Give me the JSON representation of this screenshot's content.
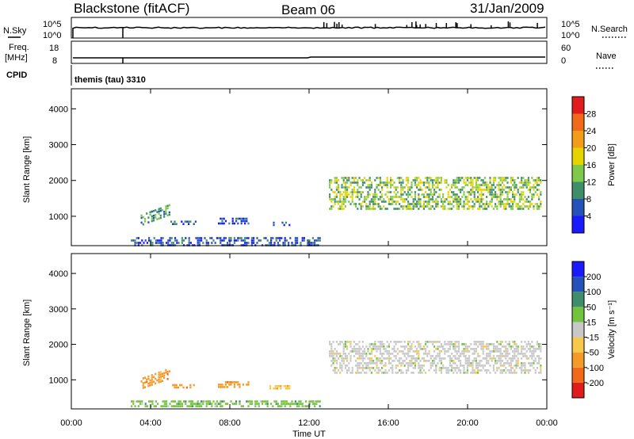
{
  "header": {
    "station": "Blackstone (fitACF)",
    "beam": "Beam 06",
    "date": "31/Jan/2009"
  },
  "strip": {
    "nsky_label": "N.Sky",
    "nsearch_label": "N.Search",
    "freq_label_1": "Freq.",
    "freq_label_2": "[MHz]",
    "nave_label": "Nave",
    "cpid_label": "CPID",
    "cpid_text": "themis (tau) 3310",
    "nsky_ticks": [
      "10^5",
      "10^0"
    ],
    "nsearch_ticks": [
      "10^5",
      "10^0"
    ],
    "freq_ticks": [
      "18",
      "8"
    ],
    "nave_ticks": [
      "60",
      "0"
    ]
  },
  "axes": {
    "ylabel": "Slant Range [km]",
    "xlabel": "Time UT"
  },
  "colors": {
    "power": [
      "#1a1aff",
      "#2552b8",
      "#3f8e6a",
      "#7ec84a",
      "#e6d400",
      "#f39c1a",
      "#f06a1a",
      "#e01c1c"
    ],
    "velocity": [
      "#e01c1c",
      "#f06a1a",
      "#f49a28",
      "#f7c84a",
      "#c8c8c8",
      "#72c43e",
      "#3f8e6a",
      "#2552b8",
      "#1a1aff"
    ]
  },
  "chart_data": [
    {
      "type": "heatmap",
      "title": "Power",
      "xlabel": "Time UT",
      "ylabel": "Slant Range [km]",
      "x_ticks": [
        "00:00",
        "04:00",
        "08:00",
        "12:00",
        "16:00",
        "20:00",
        "00:00"
      ],
      "y_ticks": [
        1000,
        2000,
        3000,
        4000
      ],
      "xlim_hours": [
        0,
        24
      ],
      "ylim_km": [
        180,
        4560
      ],
      "colorbar": {
        "label": "Power [dB]",
        "range": [
          0,
          32
        ],
        "ticks": [
          4,
          8,
          12,
          16,
          20,
          24,
          28
        ]
      },
      "echo_regions": [
        {
          "t_start": 3.5,
          "t_end": 5.0,
          "range_start_km": 750,
          "range_end_km": 1300,
          "power_db": 10
        },
        {
          "t_start": 5.0,
          "t_end": 6.3,
          "range_start_km": 780,
          "range_end_km": 880,
          "power_db": 8
        },
        {
          "t_start": 7.4,
          "t_end": 9.0,
          "range_start_km": 780,
          "range_end_km": 960,
          "power_db": 8
        },
        {
          "t_start": 10.0,
          "t_end": 11.1,
          "range_start_km": 760,
          "range_end_km": 850,
          "power_db": 6
        },
        {
          "t_start": 3.0,
          "t_end": 12.6,
          "range_start_km": 220,
          "range_end_km": 420,
          "power_db": 6
        },
        {
          "t_start": 13.0,
          "t_end": 23.7,
          "range_start_km": 1200,
          "range_end_km": 2100,
          "power_db": 14
        }
      ]
    },
    {
      "type": "heatmap",
      "title": "Velocity",
      "xlabel": "Time UT",
      "ylabel": "Slant Range [km]",
      "x_ticks": [
        "00:00",
        "04:00",
        "08:00",
        "12:00",
        "16:00",
        "20:00",
        "00:00"
      ],
      "y_ticks": [
        1000,
        2000,
        3000,
        4000
      ],
      "xlim_hours": [
        0,
        24
      ],
      "ylim_km": [
        180,
        4560
      ],
      "colorbar": {
        "label": "Velocity [m s⁻¹]",
        "ticks": [
          200,
          100,
          50,
          15,
          -15,
          -50,
          -100,
          -200
        ]
      },
      "echo_regions": [
        {
          "t_start": 3.5,
          "t_end": 5.0,
          "range_start_km": 750,
          "range_end_km": 1300,
          "velocity_ms": -60
        },
        {
          "t_start": 5.0,
          "t_end": 6.3,
          "range_start_km": 780,
          "range_end_km": 880,
          "velocity_ms": -50
        },
        {
          "t_start": 7.4,
          "t_end": 9.0,
          "range_start_km": 780,
          "range_end_km": 960,
          "velocity_ms": -50
        },
        {
          "t_start": 10.0,
          "t_end": 11.1,
          "range_start_km": 760,
          "range_end_km": 850,
          "velocity_ms": -30
        },
        {
          "t_start": 3.0,
          "t_end": 12.6,
          "range_start_km": 220,
          "range_end_km": 420,
          "velocity_ms": 20
        },
        {
          "t_start": 13.0,
          "t_end": 23.7,
          "range_start_km": 1200,
          "range_end_km": 2100,
          "velocity_ms": 0
        }
      ]
    }
  ]
}
